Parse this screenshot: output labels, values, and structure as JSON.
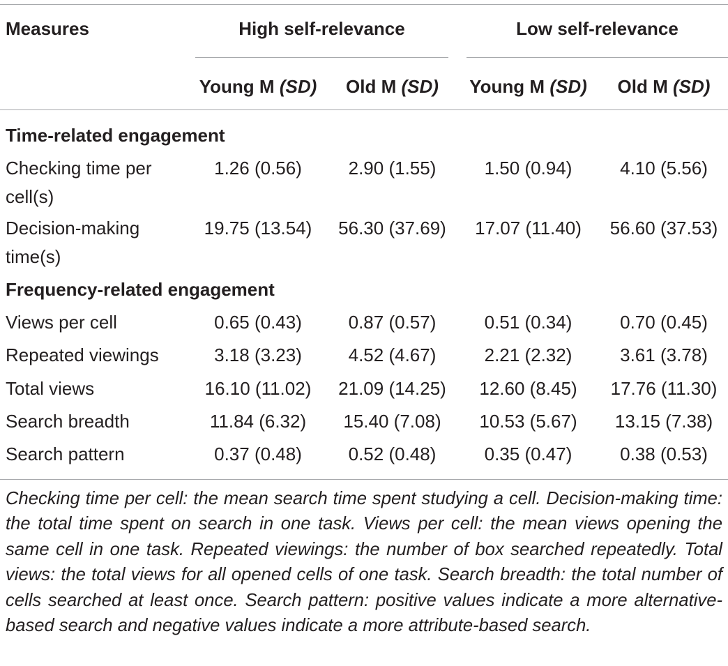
{
  "header": {
    "measures": "Measures",
    "group_high": "High self-relevance",
    "group_low": "Low self-relevance",
    "columns": [
      {
        "main": "Young M",
        "sd": "(SD)"
      },
      {
        "main": "Old M",
        "sd": "(SD)"
      },
      {
        "main": "Young M",
        "sd": "(SD)"
      },
      {
        "main": "Old M",
        "sd": "(SD)"
      }
    ]
  },
  "sections": [
    {
      "title": "Time-related engagement",
      "rows": [
        {
          "label": [
            "Checking time per",
            "cell(s)"
          ],
          "values": [
            "1.26 (0.56)",
            "2.90 (1.55)",
            "1.50 (0.94)",
            "4.10 (5.56)"
          ]
        },
        {
          "label": [
            "Decision-making",
            "time(s)"
          ],
          "values": [
            "19.75 (13.54)",
            "56.30 (37.69)",
            "17.07 (11.40)",
            "56.60 (37.53)"
          ]
        }
      ]
    },
    {
      "title": "Frequency-related engagement",
      "rows": [
        {
          "label": [
            "Views per cell"
          ],
          "values": [
            "0.65 (0.43)",
            "0.87 (0.57)",
            "0.51 (0.34)",
            "0.70 (0.45)"
          ]
        },
        {
          "label": [
            "Repeated viewings"
          ],
          "values": [
            "3.18 (3.23)",
            "4.52 (4.67)",
            "2.21 (2.32)",
            "3.61 (3.78)"
          ]
        },
        {
          "label": [
            "Total views"
          ],
          "values": [
            "16.10 (11.02)",
            "21.09 (14.25)",
            "12.60 (8.45)",
            "17.76 (11.30)"
          ]
        },
        {
          "label": [
            "Search breadth"
          ],
          "values": [
            "11.84 (6.32)",
            "15.40 (7.08)",
            "10.53 (5.67)",
            "13.15 (7.38)"
          ]
        },
        {
          "label": [
            "Search pattern"
          ],
          "values": [
            "0.37 (0.48)",
            "0.52 (0.48)",
            "0.35 (0.47)",
            "0.38 (0.53)"
          ]
        }
      ]
    }
  ],
  "caption": "Checking time per cell: the mean search time spent studying a cell. Decision-making time: the total time spent on search in one task. Views per cell: the mean views opening the same cell in one task. Repeated viewings: the number of box searched repeatedly. Total views: the total views for all opened cells of one task. Search breadth: the total number of cells searched at least once. Search pattern: positive values indicate a more alternative-based search and negative values indicate a more attribute-based search."
}
